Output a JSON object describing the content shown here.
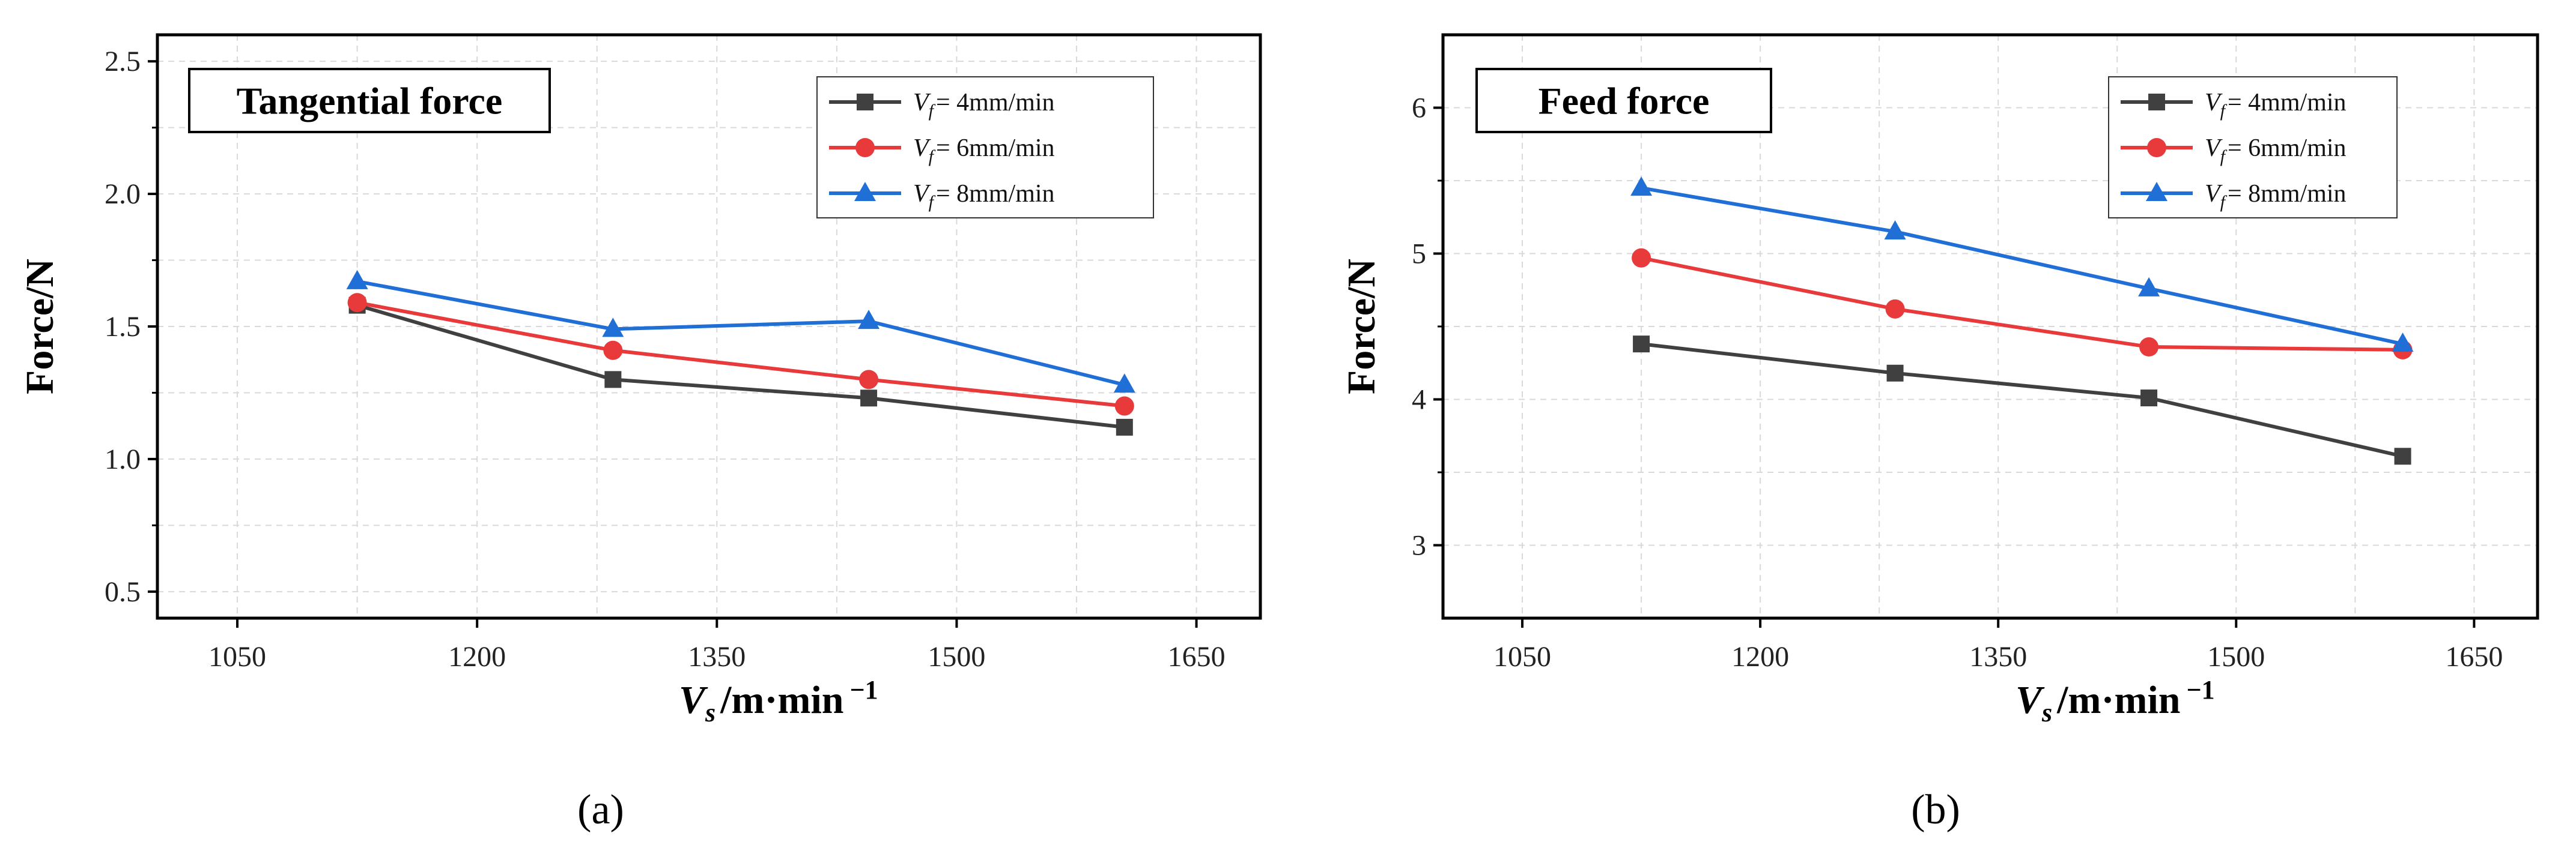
{
  "chart_data": [
    {
      "type": "line",
      "panel_label": "(a)",
      "annotation": "Tangential force",
      "xlabel_main": "V",
      "xlabel_sub": "s",
      "xlabel_unit": "/m·min",
      "xlabel_exp": "−1",
      "ylabel": "Force/N",
      "xlim": [
        1000,
        1690
      ],
      "ylim": [
        0.4,
        2.6
      ],
      "xticks": [
        1050,
        1200,
        1350,
        1500,
        1650
      ],
      "yticks": [
        0.5,
        1.0,
        1.5,
        2.0,
        2.5
      ],
      "ytick_labels": [
        "0.5",
        "1.0",
        "1.5",
        "2.0",
        "2.5"
      ],
      "x": [
        1125,
        1285,
        1445,
        1605
      ],
      "series": [
        {
          "name": "V_f = 4mm/min",
          "legend_main": "V",
          "legend_sub": "f",
          "legend_text": "= 4mm/min",
          "color": "#404040",
          "marker": "square",
          "values": [
            1.58,
            1.3,
            1.23,
            1.12
          ]
        },
        {
          "name": "V_f = 6mm/min",
          "legend_main": "V",
          "legend_sub": "f",
          "legend_text": "= 6mm/min",
          "color": "#e8393b",
          "marker": "circle",
          "values": [
            1.59,
            1.41,
            1.3,
            1.2
          ]
        },
        {
          "name": "V_f = 8mm/min",
          "legend_main": "V",
          "legend_sub": "f",
          "legend_text": "= 8mm/min",
          "color": "#1f6fd6",
          "marker": "triangle",
          "values": [
            1.67,
            1.49,
            1.52,
            1.28
          ]
        }
      ]
    },
    {
      "type": "line",
      "panel_label": "(b)",
      "annotation": "Feed force",
      "xlabel_main": "V",
      "xlabel_sub": "s",
      "xlabel_unit": "/m·min",
      "xlabel_exp": "−1",
      "ylabel": "Force/N",
      "xlim": [
        1000,
        1690
      ],
      "ylim": [
        2.5,
        6.5
      ],
      "xticks": [
        1050,
        1200,
        1350,
        1500,
        1650
      ],
      "yticks": [
        3,
        4,
        5,
        6
      ],
      "ytick_labels": [
        "3",
        "4",
        "5",
        "6"
      ],
      "x": [
        1125,
        1285,
        1445,
        1605
      ],
      "series": [
        {
          "name": "V_f = 4mm/min",
          "legend_main": "V",
          "legend_sub": "f",
          "legend_text": "= 4mm/min",
          "color": "#404040",
          "marker": "square",
          "values": [
            4.38,
            4.18,
            4.01,
            3.61
          ]
        },
        {
          "name": "V_f = 6mm/min",
          "legend_main": "V",
          "legend_sub": "f",
          "legend_text": "= 6mm/min",
          "color": "#e8393b",
          "marker": "circle",
          "values": [
            4.97,
            4.62,
            4.36,
            4.34
          ]
        },
        {
          "name": "V_f = 8mm/min",
          "legend_main": "V",
          "legend_sub": "f",
          "legend_text": "= 8mm/min",
          "color": "#1f6fd6",
          "marker": "triangle",
          "values": [
            5.45,
            5.15,
            4.76,
            4.38
          ]
        }
      ]
    }
  ]
}
